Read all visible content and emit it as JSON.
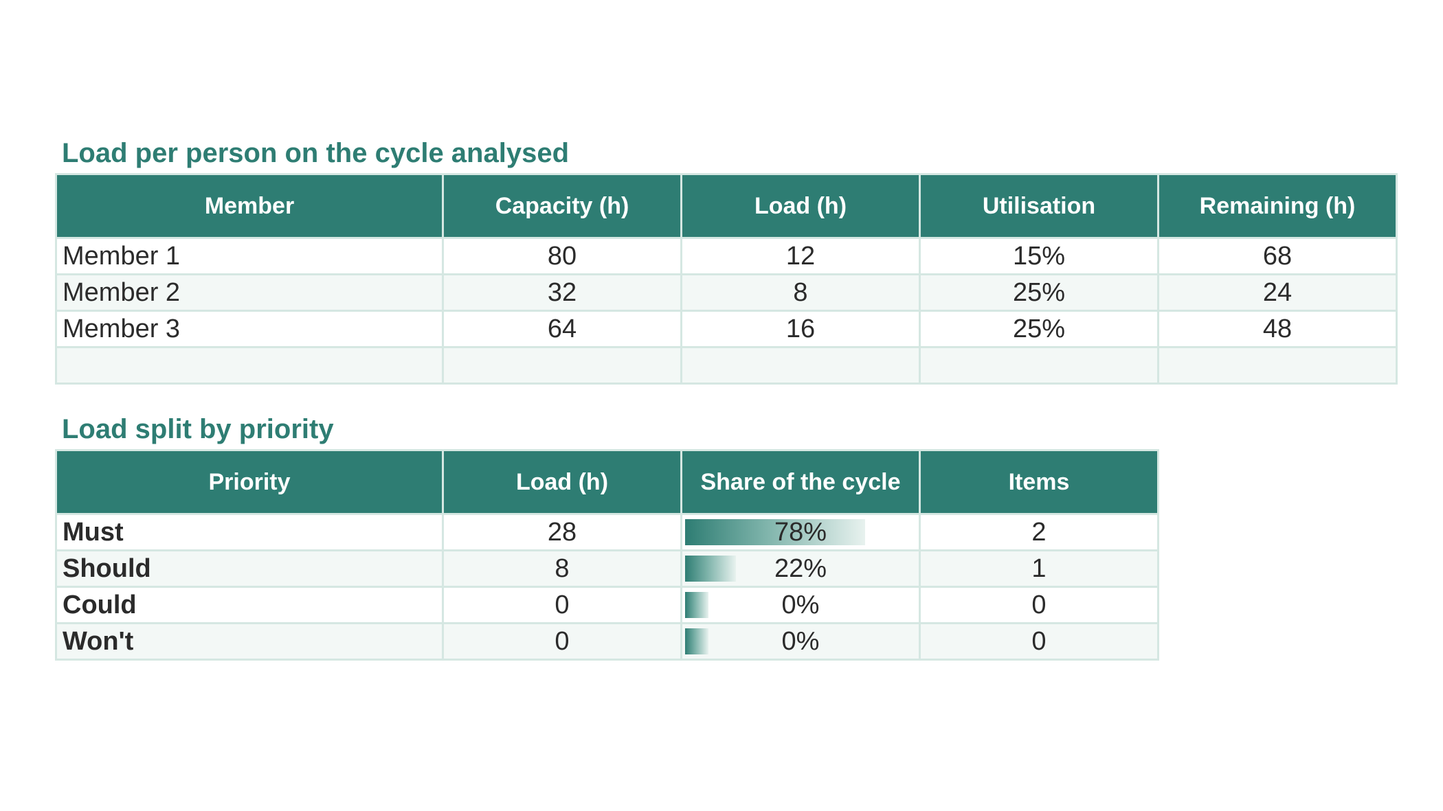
{
  "sections": {
    "members_title": "Load per person on the cycle analysed",
    "priority_title": "Load split by priority"
  },
  "members_table": {
    "headers": [
      "Member",
      "Capacity (h)",
      "Load (h)",
      "Utilisation",
      "Remaining (h)"
    ],
    "rows": [
      [
        "Member 1",
        "80",
        "12",
        "15%",
        "68"
      ],
      [
        "Member 2",
        "32",
        "8",
        "25%",
        "24"
      ],
      [
        "Member 3",
        "64",
        "16",
        "25%",
        "48"
      ],
      [
        "",
        "",
        "",
        "",
        ""
      ]
    ]
  },
  "priority_table": {
    "headers": [
      "Priority",
      "Load (h)",
      "Share of the cycle",
      "Items"
    ],
    "rows": [
      {
        "priority": "Must",
        "load": "28",
        "share": "78%",
        "share_value": 0.78,
        "items": "2"
      },
      {
        "priority": "Should",
        "load": "8",
        "share": "22%",
        "share_value": 0.22,
        "items": "1"
      },
      {
        "priority": "Could",
        "load": "0",
        "share": "0%",
        "share_value": 0,
        "items": "0"
      },
      {
        "priority": "Won't",
        "load": "0",
        "share": "0%",
        "share_value": 0,
        "items": "0"
      }
    ]
  },
  "colors": {
    "accent": "#2e7d73",
    "header_text": "#ffffff",
    "border": "#d5e7e2",
    "alt_row": "#f3f8f6"
  }
}
